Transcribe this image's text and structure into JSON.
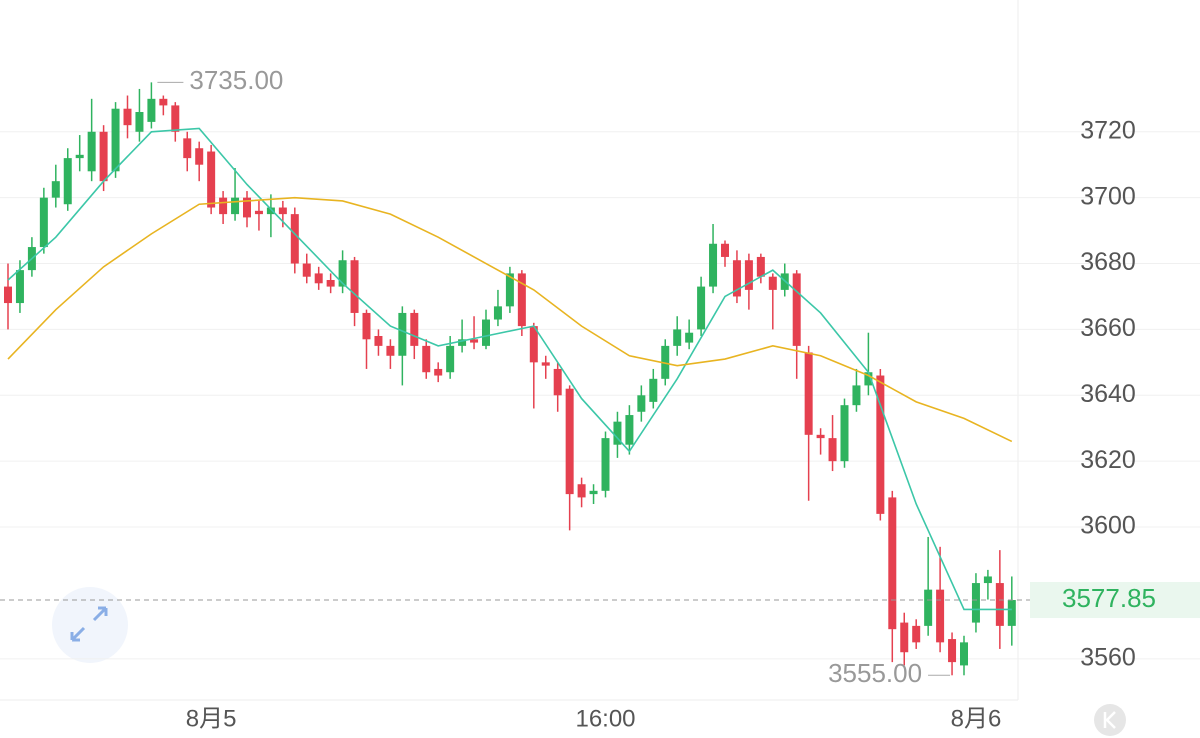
{
  "chart_data": {
    "type": "candlestick",
    "categories": [
      null,
      null,
      null,
      null,
      null,
      null,
      null,
      null,
      null,
      null,
      null,
      null,
      null,
      null,
      null,
      null,
      null,
      "8月5",
      null,
      null,
      null,
      null,
      null,
      null,
      null,
      null,
      null,
      null,
      null,
      null,
      null,
      null,
      null,
      null,
      null,
      null,
      null,
      null,
      null,
      null,
      null,
      null,
      null,
      null,
      null,
      null,
      null,
      null,
      null,
      null,
      "16:00",
      null,
      null,
      null,
      null,
      null,
      null,
      null,
      null,
      null,
      null,
      null,
      null,
      null,
      null,
      null,
      null,
      null,
      null,
      null,
      null,
      null,
      null,
      null,
      null,
      null,
      null,
      null,
      null,
      null,
      null,
      "8月6",
      null,
      null,
      null
    ],
    "open": [
      3673,
      3668,
      3678,
      3685,
      3700,
      3698,
      3712,
      3708,
      3720,
      3708,
      3727,
      3720,
      3723,
      3730,
      3728,
      3718,
      3715,
      3714,
      3700,
      3695,
      3700,
      3696,
      3695,
      3697,
      3695,
      3680,
      3677,
      3675,
      3673,
      3681,
      3665,
      3658,
      3655,
      3652,
      3665,
      3655,
      3648,
      3647,
      3655,
      3657,
      3655,
      3663,
      3667,
      3677,
      3661,
      3650,
      3648,
      3642,
      3613,
      3610,
      3611,
      3625,
      3625,
      3635,
      3638,
      3645,
      3655,
      3656,
      3660,
      3673,
      3686,
      3681,
      3681,
      3682,
      3676,
      3672,
      3677,
      3653,
      3628,
      3627,
      3620,
      3637,
      3643,
      3646,
      3609,
      3571,
      3570,
      3570,
      3581,
      3566,
      3558,
      3571,
      3583,
      3583,
      3570
    ],
    "high": [
      3680,
      3681,
      3688,
      3703,
      3710,
      3715,
      3719,
      3730,
      3722,
      3729,
      3731,
      3733,
      3735,
      3731,
      3729,
      3720,
      3717,
      3716,
      3702,
      3709,
      3702,
      3699,
      3701,
      3699,
      3697,
      3683,
      3679,
      3677,
      3684,
      3682,
      3666,
      3660,
      3657,
      3667,
      3666,
      3657,
      3650,
      3658,
      3663,
      3664,
      3666,
      3672,
      3679,
      3678,
      3662,
      3652,
      3650,
      3643,
      3615,
      3613,
      3629,
      3635,
      3637,
      3643,
      3648,
      3657,
      3664,
      3663,
      3676,
      3692,
      3687,
      3684,
      3683,
      3683,
      3677,
      3680,
      3678,
      3655,
      3630,
      3634,
      3639,
      3648,
      3659,
      3648,
      3611,
      3574,
      3572,
      3597,
      3594,
      3568,
      3567,
      3586,
      3587,
      3593,
      3585
    ],
    "low": [
      3660,
      3665,
      3676,
      3683,
      3697,
      3696,
      3708,
      3705,
      3702,
      3706,
      3718,
      3717,
      3721,
      3725,
      3717,
      3708,
      3705,
      3695,
      3692,
      3693,
      3691,
      3690,
      3688,
      3691,
      3677,
      3674,
      3672,
      3671,
      3671,
      3661,
      3648,
      3652,
      3648,
      3643,
      3651,
      3645,
      3644,
      3645,
      3653,
      3654,
      3654,
      3661,
      3665,
      3658,
      3636,
      3645,
      3635,
      3599,
      3606,
      3607,
      3609,
      3621,
      3622,
      3632,
      3636,
      3643,
      3652,
      3654,
      3658,
      3671,
      3679,
      3668,
      3666,
      3674,
      3660,
      3670,
      3645,
      3608,
      3622,
      3617,
      3618,
      3635,
      3640,
      3602,
      3559,
      3558,
      3563,
      3567,
      3562,
      3555,
      3555,
      3568,
      3578,
      3563,
      3564
    ],
    "close": [
      3668,
      3678,
      3685,
      3700,
      3705,
      3712,
      3713,
      3720,
      3705,
      3727,
      3722,
      3726,
      3730,
      3728,
      3720,
      3712,
      3710,
      3697,
      3695,
      3700,
      3694,
      3695,
      3697,
      3695,
      3680,
      3676,
      3674,
      3673,
      3681,
      3665,
      3657,
      3655,
      3652,
      3665,
      3655,
      3647,
      3646,
      3655,
      3657,
      3656,
      3663,
      3667,
      3677,
      3661,
      3650,
      3649,
      3640,
      3610,
      3609,
      3611,
      3627,
      3632,
      3634,
      3640,
      3645,
      3655,
      3660,
      3659,
      3673,
      3686,
      3682,
      3670,
      3672,
      3676,
      3672,
      3677,
      3655,
      3628,
      3627,
      3620,
      3637,
      3643,
      3647,
      3604,
      3569,
      3562,
      3565,
      3581,
      3565,
      3559,
      3565,
      3583,
      3585,
      3570,
      3577.85
    ],
    "up_color": "#2fb35f",
    "down_color": "#e5404f",
    "series": [
      {
        "color": "#3cc7a8",
        "x": [
          0,
          4,
          8,
          12,
          16,
          20,
          24,
          28,
          32,
          36,
          40,
          44,
          48,
          52,
          56,
          60,
          64,
          68,
          72,
          76,
          80,
          84
        ],
        "values": [
          3675,
          3688,
          3705,
          3720,
          3721,
          3704,
          3689,
          3674,
          3661,
          3655,
          3658,
          3661,
          3639,
          3623,
          3645,
          3670,
          3678,
          3665,
          3647,
          3607,
          3575,
          3575
        ]
      },
      {
        "color": "#e8b421",
        "x": [
          0,
          4,
          8,
          12,
          16,
          20,
          24,
          28,
          32,
          36,
          40,
          44,
          48,
          52,
          56,
          60,
          64,
          68,
          72,
          76,
          80,
          84
        ],
        "values": [
          3651,
          3666,
          3679,
          3689,
          3698,
          3699,
          3700,
          3699,
          3695,
          3688,
          3680,
          3672,
          3661,
          3652,
          3649,
          3651,
          3655,
          3652,
          3646,
          3638,
          3633,
          3626
        ]
      }
    ],
    "max_price": {
      "value": 3735,
      "label": "3735.00"
    },
    "min_price": {
      "value": 3555,
      "label": "3555.00"
    },
    "last_price": {
      "value": 3577.85,
      "label": "3577.85"
    },
    "ylim": [
      3547.5,
      3760
    ],
    "yticks": [
      3560,
      3600,
      3620,
      3640,
      3660,
      3680,
      3700,
      3720
    ],
    "grid": true
  }
}
